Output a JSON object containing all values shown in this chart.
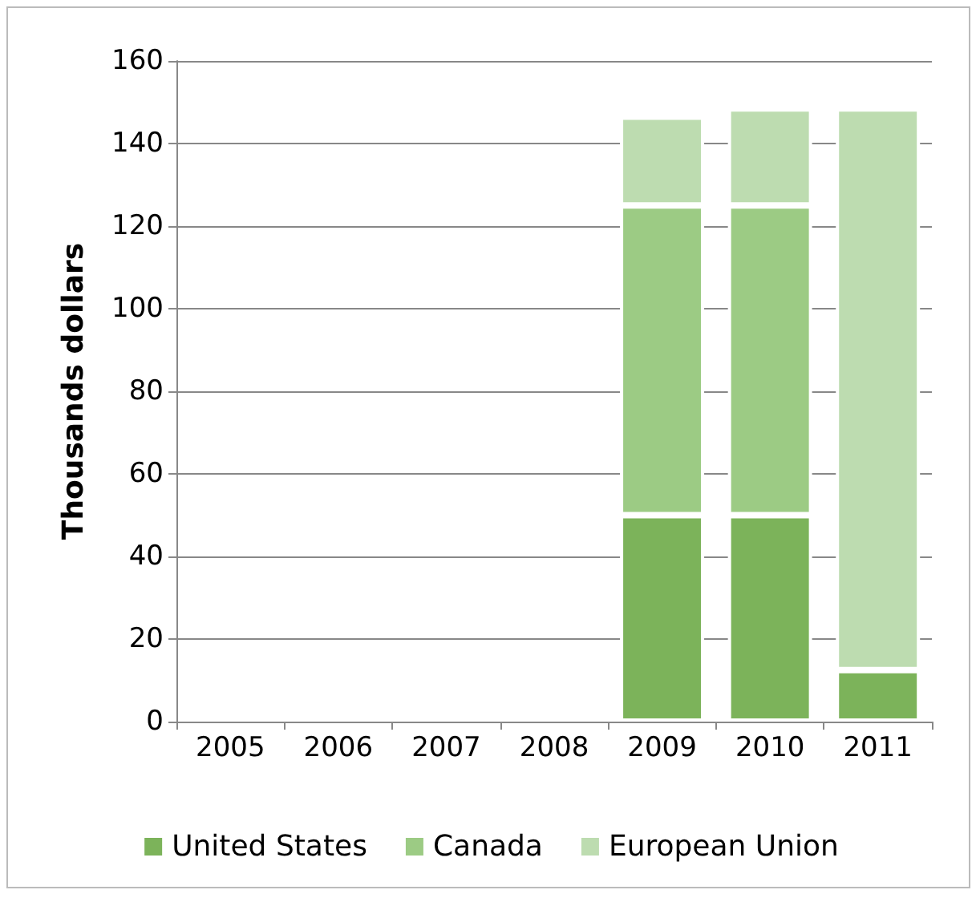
{
  "chart_data": {
    "type": "bar",
    "stacked": true,
    "ylabel": "Thousands dollars",
    "categories": [
      "2005",
      "2006",
      "2007",
      "2008",
      "2009",
      "2010",
      "2011"
    ],
    "series": [
      {
        "name": "United States",
        "color": "#7cb35a",
        "values": [
          null,
          null,
          null,
          null,
          50,
          50,
          12.5
        ]
      },
      {
        "name": "Canada",
        "color": "#9ccb84",
        "values": [
          null,
          null,
          null,
          null,
          75,
          75,
          0
        ]
      },
      {
        "name": "European Union",
        "color": "#bddcb0",
        "values": [
          null,
          null,
          null,
          null,
          21.5,
          23.5,
          136
        ]
      }
    ],
    "ylim": [
      0,
      160
    ],
    "yticks": [
      0,
      20,
      40,
      60,
      80,
      100,
      120,
      140,
      160
    ],
    "grid": "y",
    "legend": "bottom"
  }
}
